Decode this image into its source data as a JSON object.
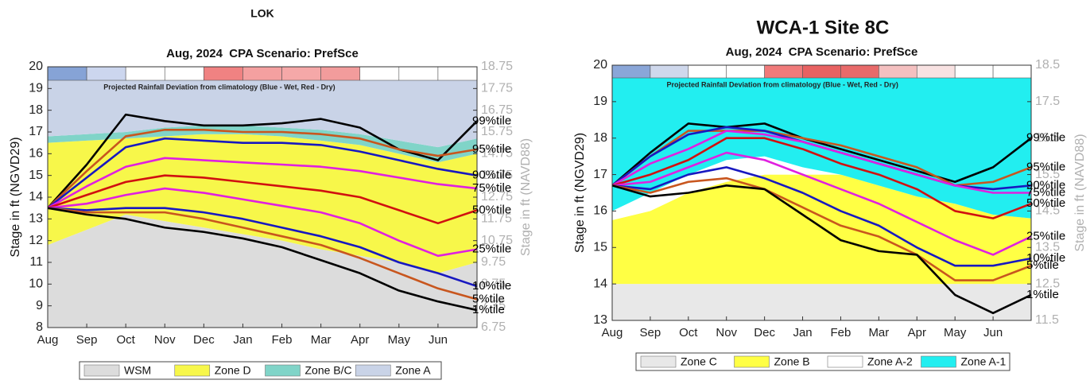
{
  "chart_data": [
    {
      "type": "line",
      "title": "LOK",
      "subtitle": "Aug, 2024  CPA Scenario: PrefSce",
      "annotation": "Projected Rainfall Deviation from climatology (Blue - Wet, Red - Dry)",
      "ylabel": "Stage in ft (NGVD29)",
      "y2label": "Stage in ft (NAVD88)",
      "categories": [
        "Aug",
        "Sep",
        "Oct",
        "Nov",
        "Dec",
        "Jan",
        "Feb",
        "Mar",
        "Apr",
        "May",
        "Jun",
        null
      ],
      "ylim": [
        8,
        20
      ],
      "yticks": [
        8,
        9,
        10,
        11,
        12,
        13,
        14,
        15,
        16,
        17,
        18,
        19,
        20
      ],
      "y2lim": [
        6.75,
        18.75
      ],
      "y2ticks": [
        6.75,
        7.75,
        8.75,
        9.75,
        10.75,
        11.75,
        12.75,
        13.75,
        14.75,
        15.75,
        16.75,
        17.75,
        18.75
      ],
      "rainfall_colors": [
        "#86a3d6",
        "#ccd6ee",
        "#ffffff",
        "#ffffff",
        "#f08282",
        "#f4a0a0",
        "#f5a8a8",
        "#f29c9c",
        "#ffffff",
        "#ffffff",
        "#ffffff"
      ],
      "zones": [
        {
          "name": "WSM",
          "color": "#dcdcdc",
          "values": [
            11.8,
            12.5,
            13.2,
            12.9,
            12.6,
            12.3,
            12.0,
            11.6,
            11.3,
            11.0,
            10.5,
            11.0
          ]
        },
        {
          "name": "Zone D",
          "color": "#f7f74a",
          "values": [
            16.5,
            16.6,
            16.7,
            16.8,
            16.9,
            16.9,
            16.8,
            16.6,
            16.4,
            16.0,
            15.6,
            16.0
          ]
        },
        {
          "name": "Zone B/C",
          "color": "#80d4c8",
          "values": [
            16.8,
            16.9,
            17.0,
            17.2,
            17.3,
            17.3,
            17.2,
            17.1,
            16.9,
            16.6,
            16.3,
            16.7
          ]
        },
        {
          "name": "Zone A",
          "color": "#c9d3e7"
        }
      ],
      "series": [
        {
          "name": "99%tile",
          "color": "#000000",
          "values": [
            13.5,
            15.5,
            17.8,
            17.5,
            17.3,
            17.3,
            17.4,
            17.6,
            17.2,
            16.2,
            15.7,
            17.5
          ]
        },
        {
          "name": "95%tile",
          "color": "#c8561e",
          "values": [
            13.5,
            15.2,
            16.8,
            17.1,
            17.1,
            17.0,
            17.0,
            16.9,
            16.7,
            16.2,
            15.9,
            16.2
          ]
        },
        {
          "name": "90%tile",
          "color": "#1818c0",
          "values": [
            13.5,
            14.9,
            16.3,
            16.7,
            16.6,
            16.5,
            16.5,
            16.4,
            16.1,
            15.7,
            15.3,
            15.0
          ]
        },
        {
          "name": "75%tile",
          "color": "#e020e0",
          "values": [
            13.5,
            14.5,
            15.4,
            15.8,
            15.7,
            15.6,
            15.5,
            15.4,
            15.2,
            14.9,
            14.6,
            14.4
          ]
        },
        {
          "name": "50%tile",
          "color": "#d01010",
          "values": [
            13.5,
            14.1,
            14.7,
            15.0,
            14.9,
            14.7,
            14.5,
            14.3,
            14.0,
            13.4,
            12.8,
            13.4
          ]
        },
        {
          "name": "25%tile",
          "color": "#e020e0",
          "values": [
            13.5,
            13.7,
            14.1,
            14.4,
            14.2,
            13.9,
            13.6,
            13.3,
            12.8,
            12.0,
            11.3,
            11.6
          ]
        },
        {
          "name": "10%tile",
          "color": "#1818c0",
          "values": [
            13.5,
            13.4,
            13.5,
            13.5,
            13.3,
            13.0,
            12.6,
            12.2,
            11.7,
            11.0,
            10.5,
            9.9
          ]
        },
        {
          "name": "5%tile",
          "color": "#c8561e",
          "values": [
            13.5,
            13.3,
            13.3,
            13.3,
            13.0,
            12.6,
            12.2,
            11.8,
            11.2,
            10.5,
            9.8,
            9.3
          ]
        },
        {
          "name": "1%tile",
          "color": "#000000",
          "values": [
            13.5,
            13.2,
            13.0,
            12.6,
            12.4,
            12.1,
            11.7,
            11.1,
            10.5,
            9.7,
            9.2,
            8.8
          ]
        }
      ]
    },
    {
      "type": "line",
      "title": "WCA-1 Site 8C",
      "subtitle": "Aug, 2024  CPA Scenario: PrefSce",
      "annotation": "Projected Rainfall Deviation from climatology (Blue - Wet, Red - Dry)",
      "ylabel": "Stage in ft (NGVD29)",
      "y2label": "Stage in ft (NAVD88)",
      "categories": [
        "Aug",
        "Sep",
        "Oct",
        "Nov",
        "Dec",
        "Jan",
        "Feb",
        "Mar",
        "Apr",
        "May",
        "Jun",
        null
      ],
      "ylim": [
        13,
        20
      ],
      "yticks": [
        13,
        14,
        15,
        16,
        17,
        18,
        19,
        20
      ],
      "y2lim": [
        11.5,
        18.5
      ],
      "y2ticks": [
        11.5,
        12.5,
        13.5,
        14.5,
        15.5,
        16.5,
        17.5,
        18.5
      ],
      "rainfall_colors": [
        "#8aa6d8",
        "#cfd8ec",
        "#ffffff",
        "#ffffff",
        "#f07a7a",
        "#e86262",
        "#e86a6a",
        "#f4c0c0",
        "#f8e2e2",
        "#ffffff",
        "#ffffff"
      ],
      "zones": [
        {
          "name": "Zone C",
          "color": "#e8e8e8",
          "values": [
            14,
            14,
            14,
            14,
            14,
            14,
            14,
            14,
            14,
            14,
            14,
            14
          ]
        },
        {
          "name": "Zone B",
          "color": "#ffff44",
          "values": [
            15.75,
            16.0,
            16.5,
            16.8,
            17.0,
            17.0,
            17.0,
            16.7,
            16.4,
            16.2,
            15.9,
            15.8
          ]
        },
        {
          "name": "Zone A-2",
          "color": "#ffffff",
          "values": [
            16.0,
            16.5,
            17.0,
            17.4,
            17.5,
            17.2,
            17.0,
            16.7,
            16.4,
            16.2,
            15.9,
            15.8
          ]
        },
        {
          "name": "Zone A-1",
          "color": "#22eef0"
        }
      ],
      "series": [
        {
          "name": "99%tile",
          "color": "#000000",
          "values": [
            16.7,
            17.6,
            18.4,
            18.3,
            18.4,
            18.0,
            17.7,
            17.4,
            17.1,
            16.8,
            17.2,
            18.0
          ]
        },
        {
          "name": "95%tile",
          "color": "#c8561e",
          "values": [
            16.7,
            17.5,
            18.2,
            18.2,
            18.2,
            18.0,
            17.8,
            17.5,
            17.2,
            16.7,
            16.8,
            17.2
          ]
        },
        {
          "name": "90%tile",
          "color": "#1818c0",
          "values": [
            16.7,
            17.5,
            18.1,
            18.3,
            18.2,
            17.9,
            17.6,
            17.3,
            17.0,
            16.7,
            16.6,
            16.7
          ]
        },
        {
          "name": "75%tile",
          "color": "#e020e0",
          "values": [
            16.7,
            17.3,
            17.7,
            18.2,
            18.1,
            17.9,
            17.6,
            17.3,
            17.0,
            16.7,
            16.5,
            16.5
          ]
        },
        {
          "name": "50%tile",
          "color": "#d01010",
          "values": [
            16.7,
            17.0,
            17.4,
            18.0,
            18.0,
            17.7,
            17.3,
            17.0,
            16.6,
            16.0,
            15.8,
            16.2
          ]
        },
        {
          "name": "25%tile",
          "color": "#e020e0",
          "values": [
            16.7,
            16.8,
            17.2,
            17.6,
            17.4,
            17.0,
            16.6,
            16.2,
            15.7,
            15.2,
            14.8,
            15.3
          ]
        },
        {
          "name": "10%tile",
          "color": "#1818c0",
          "values": [
            16.7,
            16.6,
            17.0,
            17.2,
            16.9,
            16.5,
            16.0,
            15.6,
            15.0,
            14.5,
            14.5,
            14.7
          ]
        },
        {
          "name": "5%tile",
          "color": "#c8561e",
          "values": [
            16.7,
            16.5,
            16.8,
            16.9,
            16.6,
            16.1,
            15.6,
            15.3,
            14.8,
            14.1,
            14.1,
            14.5
          ]
        },
        {
          "name": "1%tile",
          "color": "#000000",
          "values": [
            16.7,
            16.4,
            16.5,
            16.7,
            16.6,
            15.9,
            15.2,
            14.9,
            14.8,
            13.7,
            13.2,
            13.7
          ]
        }
      ]
    }
  ]
}
